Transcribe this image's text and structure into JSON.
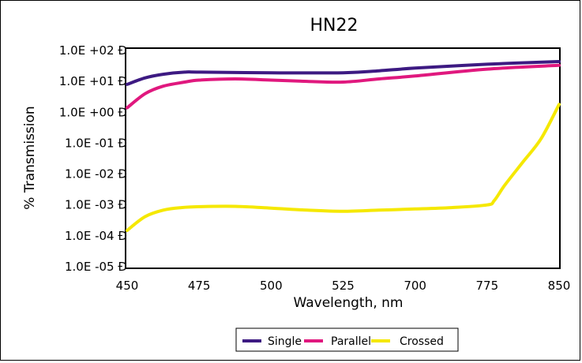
{
  "chart_data": {
    "type": "line",
    "title": "HN22",
    "xlabel": "Wavelength, nm",
    "ylabel": "% Transmission",
    "categories": [
      "450",
      "475",
      "500",
      "525",
      "700",
      "775",
      "850"
    ],
    "y_scale": "log",
    "ylim": [
      1e-05,
      100
    ],
    "y_tick_labels": [
      "1.0E +02 Ð",
      "1.0E +01 Ð",
      "1.0E +00 Ð",
      "1.0E -01 Ð",
      "1.0E -02 Ð",
      "1.0E -03 Ð",
      "1.0E -04 Ð",
      "1.0E -05 Ð"
    ],
    "grid": false,
    "legend_position": "bottom",
    "series": [
      {
        "name": "Single",
        "color": "#3d1a82",
        "x": [
          0,
          0.25,
          0.5,
          0.8,
          1.0,
          2.0,
          3.0,
          3.5,
          4.0,
          5.0,
          6.0
        ],
        "y": [
          8.0,
          13,
          17,
          20,
          20,
          19,
          19,
          22,
          27,
          36,
          44
        ]
      },
      {
        "name": "Parallel",
        "color": "#e0187e",
        "x": [
          0,
          0.25,
          0.5,
          0.8,
          1.0,
          1.5,
          2.0,
          2.5,
          3.0,
          3.5,
          4.0,
          5.0,
          6.0
        ],
        "y": [
          1.4,
          4.0,
          7.0,
          9.5,
          11,
          12,
          11,
          10,
          9.5,
          12,
          15,
          25,
          33
        ]
      },
      {
        "name": "Crossed",
        "color": "#f5e800",
        "x": [
          0,
          0.25,
          0.5,
          0.75,
          1.0,
          1.5,
          2.0,
          2.5,
          3.0,
          3.5,
          4.0,
          4.5,
          5.0,
          5.1,
          5.25,
          5.5,
          5.75,
          6.0
        ],
        "y": [
          0.00015,
          0.00042,
          0.00068,
          0.00082,
          0.00088,
          0.0009,
          0.00079,
          0.00068,
          0.00062,
          0.00068,
          0.00074,
          0.00082,
          0.001,
          0.0014,
          0.0045,
          0.025,
          0.14,
          1.8
        ]
      }
    ]
  }
}
